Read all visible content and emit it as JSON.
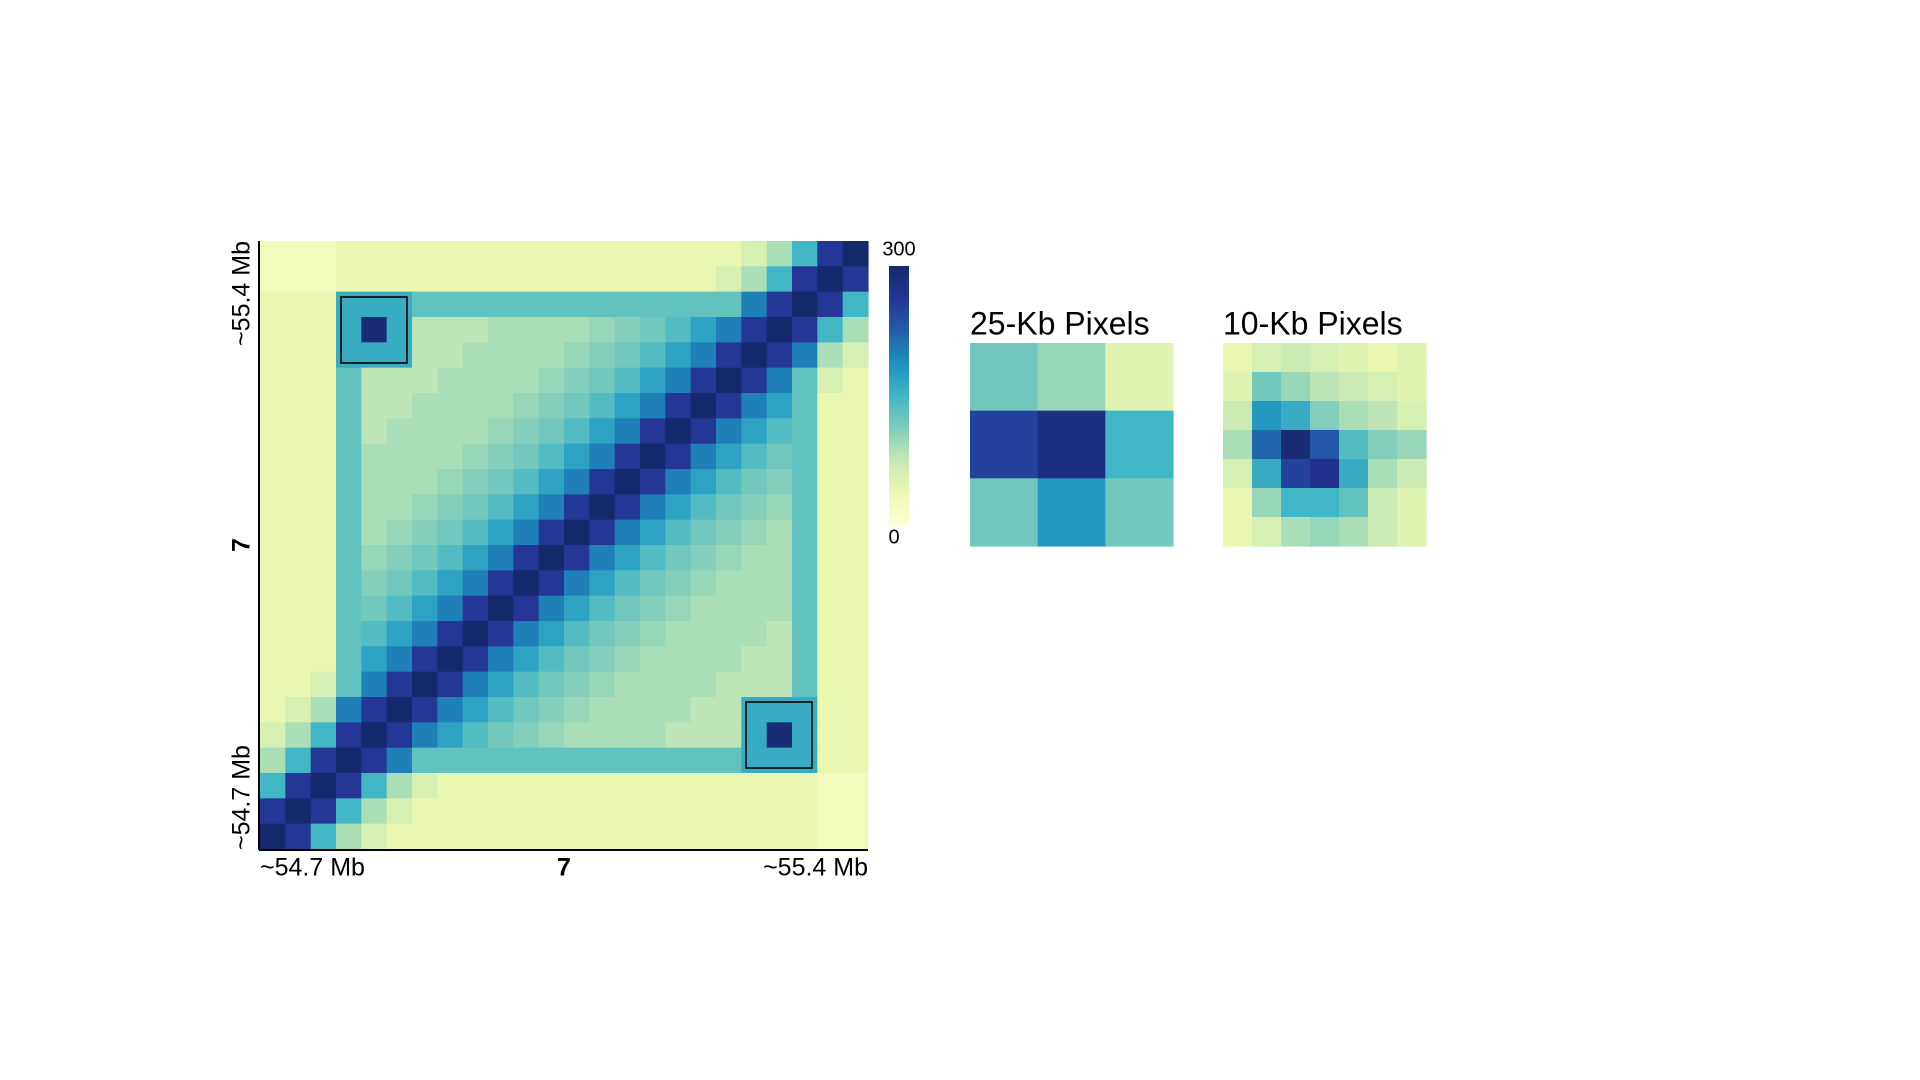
{
  "chart_data": [
    {
      "type": "heatmap",
      "x_start_label": "~54.7 Mb",
      "xlabel": "7",
      "x_end_label": "~55.4 Mb",
      "y_start_label": "~54.7 Mb",
      "ylabel": "7",
      "y_end_label": "~55.4 Mb",
      "zlim": [
        0,
        300
      ],
      "zticks": [
        0,
        300
      ],
      "colorbar": true,
      "colorscale": [
        "#ffffd9",
        "#edf8b1",
        "#c7e9b4",
        "#7fcdbb",
        "#41b6c4",
        "#1d91c0",
        "#225ea8",
        "#253494",
        "#142a6c"
      ],
      "z": [
        [
          25,
          25,
          25,
          40,
          40,
          40,
          40,
          40,
          40,
          40,
          40,
          40,
          40,
          40,
          40,
          40,
          40,
          40,
          40,
          60,
          90,
          150,
          260,
          300
        ],
        [
          25,
          25,
          25,
          40,
          40,
          40,
          40,
          40,
          40,
          40,
          40,
          40,
          40,
          40,
          40,
          40,
          40,
          40,
          60,
          90,
          150,
          260,
          300,
          260
        ],
        [
          40,
          40,
          40,
          160,
          160,
          160,
          130,
          130,
          130,
          130,
          130,
          130,
          130,
          130,
          130,
          130,
          130,
          130,
          130,
          200,
          260,
          300,
          260,
          150
        ],
        [
          40,
          40,
          40,
          160,
          290,
          160,
          80,
          80,
          80,
          90,
          90,
          90,
          90,
          100,
          110,
          120,
          140,
          170,
          200,
          260,
          300,
          260,
          150,
          90
        ],
        [
          40,
          40,
          40,
          160,
          160,
          160,
          80,
          80,
          90,
          90,
          90,
          90,
          100,
          110,
          120,
          140,
          170,
          200,
          260,
          300,
          260,
          200,
          90,
          60
        ],
        [
          40,
          40,
          40,
          130,
          80,
          80,
          80,
          90,
          90,
          90,
          90,
          100,
          110,
          120,
          140,
          170,
          200,
          260,
          300,
          260,
          200,
          130,
          60,
          40
        ],
        [
          40,
          40,
          40,
          130,
          80,
          80,
          90,
          90,
          90,
          90,
          100,
          110,
          120,
          140,
          170,
          200,
          260,
          300,
          260,
          200,
          170,
          130,
          40,
          40
        ],
        [
          40,
          40,
          40,
          130,
          80,
          90,
          90,
          90,
          90,
          100,
          110,
          120,
          140,
          170,
          200,
          260,
          300,
          260,
          200,
          170,
          140,
          130,
          40,
          40
        ],
        [
          40,
          40,
          40,
          130,
          90,
          90,
          90,
          90,
          100,
          110,
          120,
          140,
          170,
          200,
          260,
          300,
          260,
          200,
          170,
          140,
          120,
          130,
          40,
          40
        ],
        [
          40,
          40,
          40,
          130,
          90,
          90,
          90,
          100,
          110,
          120,
          140,
          170,
          200,
          260,
          300,
          260,
          200,
          170,
          140,
          120,
          110,
          130,
          40,
          40
        ],
        [
          40,
          40,
          40,
          130,
          90,
          90,
          100,
          110,
          120,
          140,
          170,
          200,
          260,
          300,
          260,
          200,
          170,
          140,
          120,
          110,
          100,
          130,
          40,
          40
        ],
        [
          40,
          40,
          40,
          130,
          90,
          100,
          110,
          120,
          140,
          170,
          200,
          260,
          300,
          260,
          200,
          170,
          140,
          120,
          110,
          100,
          90,
          130,
          40,
          40
        ],
        [
          40,
          40,
          40,
          130,
          100,
          110,
          120,
          140,
          170,
          200,
          260,
          300,
          260,
          200,
          170,
          140,
          120,
          110,
          100,
          90,
          90,
          130,
          40,
          40
        ],
        [
          40,
          40,
          40,
          130,
          110,
          120,
          140,
          170,
          200,
          260,
          300,
          260,
          200,
          170,
          140,
          120,
          110,
          100,
          90,
          90,
          90,
          130,
          40,
          40
        ],
        [
          40,
          40,
          40,
          130,
          120,
          140,
          170,
          200,
          260,
          300,
          260,
          200,
          170,
          140,
          120,
          110,
          100,
          90,
          90,
          90,
          90,
          130,
          40,
          40
        ],
        [
          40,
          40,
          40,
          130,
          140,
          170,
          200,
          260,
          300,
          260,
          200,
          170,
          140,
          120,
          110,
          100,
          90,
          90,
          90,
          90,
          80,
          130,
          40,
          40
        ],
        [
          40,
          40,
          40,
          130,
          170,
          200,
          260,
          300,
          260,
          200,
          170,
          140,
          120,
          110,
          100,
          90,
          90,
          90,
          90,
          80,
          80,
          130,
          40,
          40
        ],
        [
          40,
          40,
          60,
          130,
          200,
          260,
          300,
          260,
          200,
          170,
          140,
          120,
          110,
          100,
          90,
          90,
          90,
          90,
          80,
          80,
          80,
          130,
          40,
          40
        ],
        [
          40,
          60,
          90,
          200,
          260,
          300,
          260,
          200,
          170,
          140,
          120,
          110,
          100,
          90,
          90,
          90,
          90,
          80,
          80,
          160,
          160,
          160,
          40,
          40
        ],
        [
          60,
          90,
          150,
          260,
          300,
          260,
          200,
          170,
          140,
          120,
          110,
          100,
          90,
          90,
          90,
          90,
          80,
          80,
          80,
          160,
          290,
          160,
          40,
          40
        ],
        [
          90,
          150,
          260,
          300,
          260,
          200,
          130,
          130,
          130,
          130,
          130,
          130,
          130,
          130,
          130,
          130,
          130,
          130,
          130,
          160,
          160,
          160,
          40,
          40
        ],
        [
          150,
          260,
          300,
          260,
          150,
          90,
          60,
          40,
          40,
          40,
          40,
          40,
          40,
          40,
          40,
          40,
          40,
          40,
          40,
          40,
          40,
          40,
          25,
          25
        ],
        [
          260,
          300,
          260,
          150,
          90,
          60,
          40,
          40,
          40,
          40,
          40,
          40,
          40,
          40,
          40,
          40,
          40,
          40,
          40,
          40,
          40,
          40,
          25,
          25
        ],
        [
          300,
          260,
          150,
          90,
          60,
          40,
          40,
          40,
          40,
          40,
          40,
          40,
          40,
          40,
          40,
          40,
          40,
          40,
          40,
          40,
          40,
          40,
          25,
          25
        ]
      ]
    },
    {
      "type": "heatmap",
      "title": "25-Kb Pixels",
      "zlim": [
        0,
        300
      ],
      "colorscale": [
        "#ffffd9",
        "#edf8b1",
        "#c7e9b4",
        "#7fcdbb",
        "#41b6c4",
        "#1d91c0",
        "#225ea8",
        "#253494",
        "#142a6c"
      ],
      "z": [
        [
          120,
          100,
          50
        ],
        [
          250,
          280,
          150
        ],
        [
          120,
          180,
          120
        ]
      ]
    },
    {
      "type": "heatmap",
      "title": "10-Kb Pixels",
      "zlim": [
        0,
        300
      ],
      "colorscale": [
        "#ffffd9",
        "#edf8b1",
        "#c7e9b4",
        "#7fcdbb",
        "#41b6c4",
        "#1d91c0",
        "#225ea8",
        "#253494",
        "#142a6c"
      ],
      "z": [
        [
          40,
          60,
          70,
          60,
          50,
          40,
          50
        ],
        [
          50,
          120,
          100,
          80,
          70,
          60,
          50
        ],
        [
          70,
          180,
          160,
          110,
          90,
          80,
          60
        ],
        [
          90,
          220,
          290,
          230,
          140,
          110,
          100
        ],
        [
          60,
          160,
          250,
          270,
          160,
          90,
          70
        ],
        [
          40,
          100,
          150,
          150,
          130,
          70,
          50
        ],
        [
          40,
          60,
          90,
          100,
          90,
          70,
          50
        ]
      ]
    }
  ]
}
